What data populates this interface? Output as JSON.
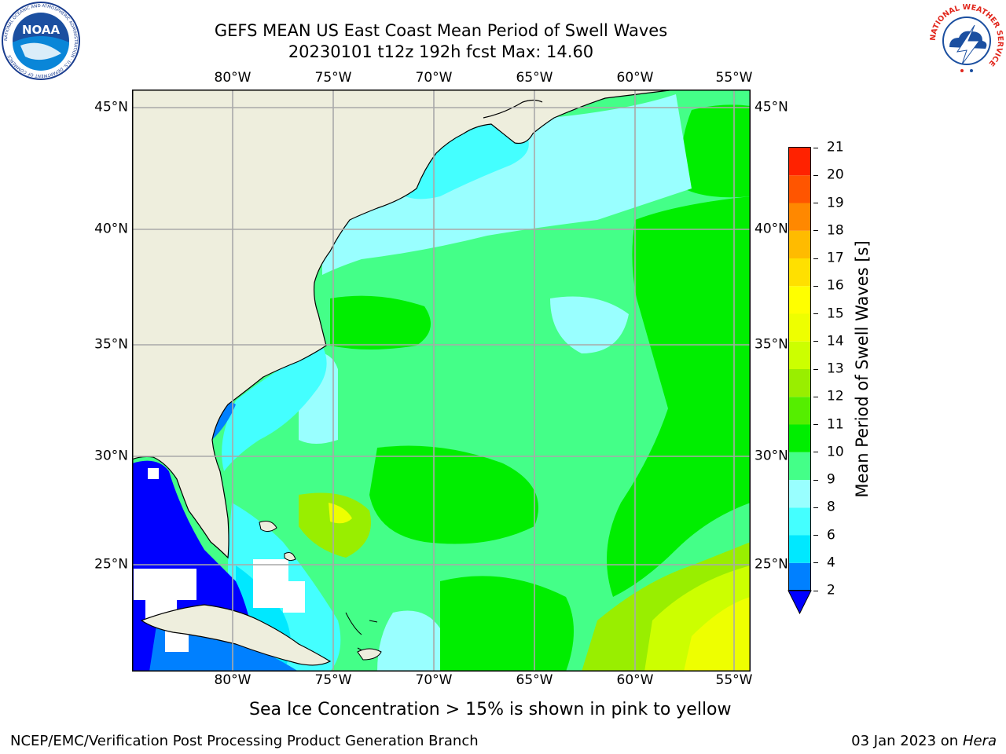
{
  "header": {
    "title_line1": "GEFS MEAN US East Coast Mean Period of Swell Waves",
    "title_line2": "20230101 t12z 192h fcst   Max: 14.60"
  },
  "logos": {
    "left": "noaa-logo",
    "right": "nws-logo",
    "noaa_text": "NOAA",
    "noaa_ring_text": "NATIONAL OCEANIC AND ATMOSPHERIC ADMINISTRATION · U.S. DEPARTMENT OF COMMERCE",
    "nws_ring_text": "NATIONAL WEATHER SERVICE"
  },
  "map": {
    "lon_labels": [
      "80°W",
      "75°W",
      "70°W",
      "65°W",
      "60°W",
      "55°W"
    ],
    "lat_labels": [
      "45°N",
      "40°N",
      "35°N",
      "30°N",
      "25°N"
    ],
    "colors": {
      "land": "#EEEEDD",
      "no_data": "#FFFFFF",
      "grid": "#A9A9A9",
      "coast": "#000000"
    }
  },
  "colorbar": {
    "title": "Mean Period of Swell Waves [s]",
    "tick_labels": [
      "21",
      "20",
      "19",
      "18",
      "17",
      "16",
      "15",
      "14",
      "13",
      "12",
      "11",
      "10",
      "9",
      "8",
      "6",
      "4",
      "2"
    ],
    "levels": [
      2,
      4,
      6,
      8,
      9,
      10,
      11,
      12,
      13,
      14,
      15,
      16,
      17,
      18,
      19,
      20,
      21
    ],
    "colors": [
      "#0080FF",
      "#00E8FF",
      "#44FFFF",
      "#99FFFF",
      "#44FF88",
      "#00EE00",
      "#55EE00",
      "#99EE00",
      "#CCFF00",
      "#EEFF00",
      "#FFFF00",
      "#FFE000",
      "#FFBB00",
      "#FF8800",
      "#FF5500",
      "#FF2200"
    ],
    "under_color": "#0000FF"
  },
  "notes": {
    "sea_ice": "Sea Ice Concentration > 15% is shown in pink to yellow"
  },
  "footer": {
    "left": "NCEP/EMC/Verification Post Processing Product Generation Branch",
    "date": "03 Jan 2023 on ",
    "host": "Hera"
  }
}
